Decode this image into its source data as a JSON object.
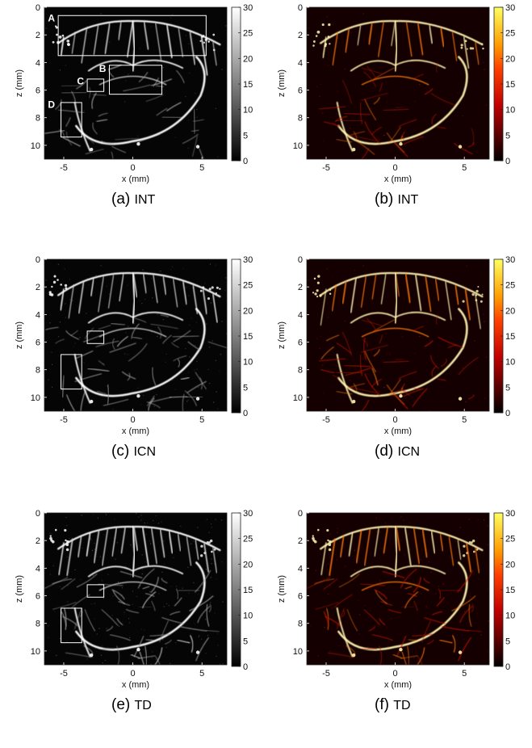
{
  "figure": {
    "panels": [
      {
        "id": "a",
        "tag": "(a)",
        "name": "INT",
        "colormap": "gray",
        "caption_id": "a",
        "rois": [
          "A",
          "B",
          "C",
          "D"
        ],
        "density": 0.55,
        "noise": 0.05
      },
      {
        "id": "b",
        "tag": "(b)",
        "name": "INT",
        "colormap": "hot",
        "caption_id": "b",
        "rois": [],
        "density": 0.55,
        "noise": 0.04
      },
      {
        "id": "c",
        "tag": "(c)",
        "name": "ICN",
        "colormap": "gray",
        "caption_id": "c",
        "rois": [
          "C",
          "D"
        ],
        "density": 0.8,
        "noise": 0.12
      },
      {
        "id": "d",
        "tag": "(d)",
        "name": "ICN",
        "colormap": "hot",
        "caption_id": "d",
        "rois": [],
        "density": 0.8,
        "noise": 0.05
      },
      {
        "id": "e",
        "tag": "(e)",
        "name": "TD",
        "colormap": "gray",
        "caption_id": "e",
        "rois": [
          "C",
          "D"
        ],
        "density": 1.0,
        "noise": 0.2
      },
      {
        "id": "f",
        "tag": "(f)",
        "name": "TD",
        "colormap": "hot",
        "caption_id": "f",
        "rois": [],
        "density": 1.0,
        "noise": 0.12
      }
    ],
    "x_axis": {
      "label": "x (mm)",
      "ticks": [
        "-5",
        "0",
        "5"
      ],
      "tick_values": [
        -5,
        0,
        5
      ],
      "range": [
        -6.4,
        6.8
      ]
    },
    "z_axis": {
      "label": "z (mm)",
      "ticks": [
        "0",
        "2",
        "4",
        "6",
        "8",
        "10"
      ],
      "tick_values": [
        0,
        2,
        4,
        6,
        8,
        10
      ],
      "range": [
        0,
        11
      ]
    },
    "colorbar": {
      "ticks": [
        "0",
        "5",
        "10",
        "15",
        "20",
        "25",
        "30"
      ],
      "tick_values": [
        0,
        5,
        10,
        15,
        20,
        25,
        30
      ],
      "range": [
        0,
        30
      ]
    },
    "roi_labels": {
      "A": "A",
      "B": "B",
      "C": "C",
      "D": "D"
    }
  }
}
